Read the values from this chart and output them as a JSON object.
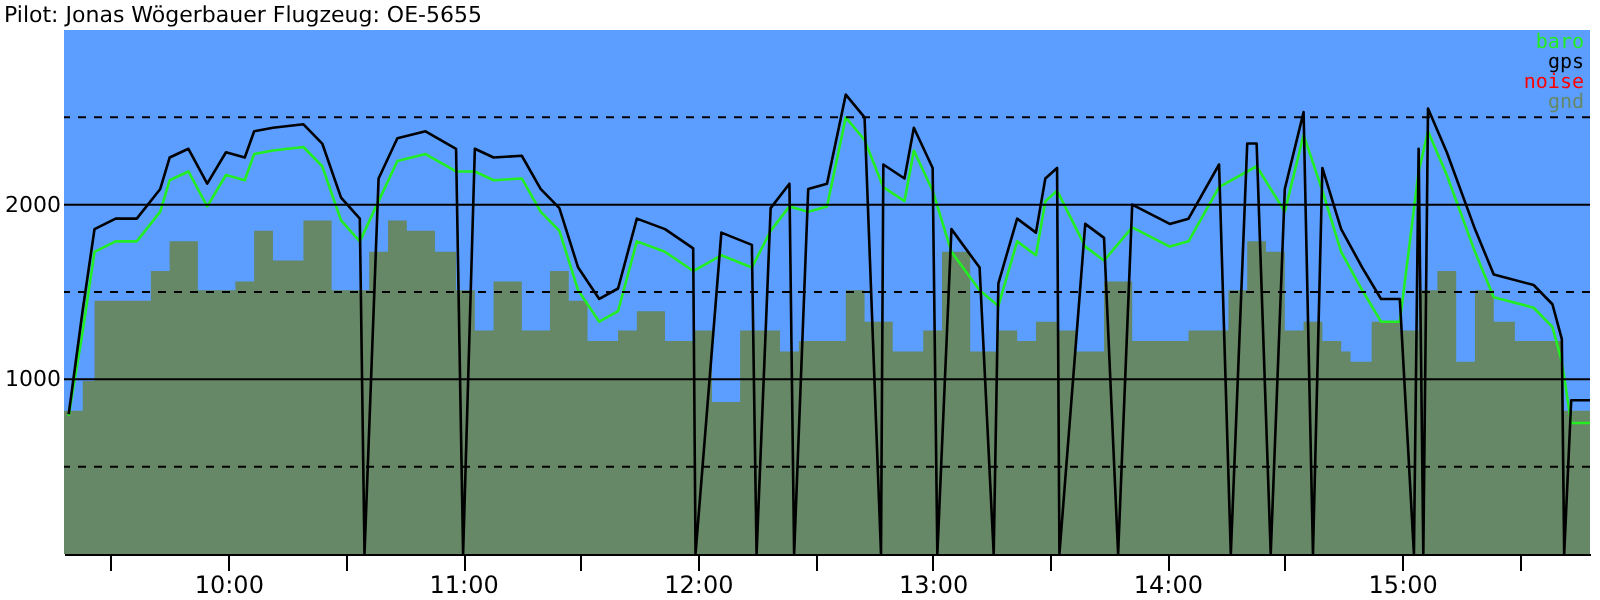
{
  "chart_data": {
    "type": "line",
    "title": "Pilot: Jonas Wögerbauer Flugzeug: OE-5655",
    "xlim": [
      9.3,
      15.8
    ],
    "ylim": [
      0,
      3000
    ],
    "xticks": [
      {
        "value": 9.5,
        "label": null
      },
      {
        "value": 10,
        "label": "10:00"
      },
      {
        "value": 10.5,
        "label": null
      },
      {
        "value": 11,
        "label": "11:00"
      },
      {
        "value": 11.5,
        "label": null
      },
      {
        "value": 12,
        "label": "12:00"
      },
      {
        "value": 12.5,
        "label": null
      },
      {
        "value": 13,
        "label": "13:00"
      },
      {
        "value": 13.5,
        "label": null
      },
      {
        "value": 14,
        "label": "14:00"
      },
      {
        "value": 14.5,
        "label": null
      },
      {
        "value": 15,
        "label": "15:00"
      },
      {
        "value": 15.5,
        "label": null
      }
    ],
    "yticks": [
      {
        "value": 500,
        "label": null
      },
      1000,
      {
        "value": 1500,
        "label": null
      },
      2000,
      {
        "value": 2500,
        "label": null
      }
    ],
    "grid": "y",
    "legend": "top right",
    "series": [
      {
        "name": "gnd",
        "type": "area",
        "color": "#668866",
        "x": [
          9.3,
          9.38,
          9.43,
          9.54,
          9.67,
          9.75,
          9.87,
          10.03,
          10.11,
          10.19,
          10.32,
          10.44,
          10.6,
          10.68,
          10.76,
          10.88,
          10.97,
          11.05,
          11.13,
          11.25,
          11.37,
          11.45,
          11.53,
          11.66,
          11.74,
          11.86,
          11.98,
          12.06,
          12.18,
          12.35,
          12.43,
          12.55,
          12.63,
          12.71,
          12.83,
          12.96,
          13.04,
          13.16,
          13.28,
          13.36,
          13.44,
          13.53,
          13.61,
          13.73,
          13.85,
          13.93,
          14.09,
          14.26,
          14.34,
          14.42,
          14.5,
          14.58,
          14.66,
          14.74,
          14.78,
          14.87,
          14.99,
          15.07,
          15.15,
          15.23,
          15.31,
          15.39,
          15.48,
          15.6,
          15.68,
          15.8
        ],
        "values": [
          820,
          990,
          1450,
          1450,
          1620,
          1790,
          1510,
          1560,
          1850,
          1680,
          1910,
          1510,
          1730,
          1910,
          1850,
          1730,
          1510,
          1280,
          1560,
          1280,
          1620,
          1450,
          1220,
          1280,
          1390,
          1220,
          1280,
          870,
          1280,
          1160,
          1220,
          1220,
          1510,
          1330,
          1160,
          1280,
          1730,
          1160,
          1280,
          1220,
          1330,
          1280,
          1160,
          1560,
          1220,
          1220,
          1280,
          1510,
          1790,
          1730,
          1280,
          1330,
          1220,
          1160,
          1100,
          1330,
          1280,
          1510,
          1620,
          1100,
          1510,
          1330,
          1220,
          1220,
          820,
          470
        ]
      },
      {
        "name": "baro",
        "color": "#22ee22",
        "x": [
          9.32,
          9.38,
          9.43,
          9.52,
          9.61,
          9.71,
          9.75,
          9.83,
          9.91,
          9.99,
          10.07,
          10.11,
          10.19,
          10.32,
          10.4,
          10.48,
          10.56,
          10.64,
          10.72,
          10.84,
          10.97,
          11.05,
          11.13,
          11.25,
          11.33,
          11.41,
          11.49,
          11.58,
          11.66,
          11.74,
          11.86,
          11.98,
          12.1,
          12.23,
          12.31,
          12.39,
          12.47,
          12.55,
          12.63,
          12.71,
          12.79,
          12.88,
          12.92,
          13.0,
          13.08,
          13.2,
          13.28,
          13.36,
          13.44,
          13.48,
          13.53,
          13.65,
          13.73,
          13.85,
          14.01,
          14.09,
          14.22,
          14.38,
          14.5,
          14.58,
          14.66,
          14.74,
          14.83,
          14.91,
          14.99,
          15.07,
          15.11,
          15.19,
          15.31,
          15.39,
          15.56,
          15.64,
          15.68,
          15.72,
          15.8
        ],
        "values": [
          790,
          1280,
          1730,
          1790,
          1790,
          1960,
          2140,
          2190,
          1990,
          2170,
          2140,
          2290,
          2310,
          2330,
          2220,
          1910,
          1790,
          2020,
          2250,
          2290,
          2190,
          2190,
          2140,
          2150,
          1960,
          1850,
          1510,
          1330,
          1390,
          1790,
          1730,
          1620,
          1710,
          1640,
          1850,
          1990,
          1960,
          1990,
          2500,
          2370,
          2100,
          2020,
          2310,
          2080,
          1730,
          1510,
          1420,
          1790,
          1710,
          2020,
          2080,
          1760,
          1680,
          1870,
          1760,
          1790,
          2100,
          2220,
          1960,
          2400,
          2080,
          1730,
          1510,
          1330,
          1330,
          2190,
          2420,
          2170,
          1730,
          1470,
          1410,
          1300,
          1100,
          750,
          750
        ]
      },
      {
        "name": "gps",
        "color": "#000000",
        "x": [
          9.32,
          9.38,
          9.43,
          9.52,
          9.61,
          9.71,
          9.75,
          9.83,
          9.91,
          9.99,
          10.07,
          10.11,
          10.19,
          10.32,
          10.4,
          10.48,
          10.56,
          10.58,
          10.64,
          10.72,
          10.84,
          10.97,
          11.0,
          11.05,
          11.13,
          11.25,
          11.33,
          11.41,
          11.49,
          11.58,
          11.66,
          11.74,
          11.86,
          11.98,
          11.99,
          12.1,
          12.23,
          12.25,
          12.31,
          12.39,
          12.41,
          12.47,
          12.55,
          12.63,
          12.71,
          12.78,
          12.79,
          12.88,
          12.92,
          13.0,
          13.02,
          13.08,
          13.2,
          13.26,
          13.28,
          13.36,
          13.44,
          13.48,
          13.53,
          13.54,
          13.65,
          13.73,
          13.79,
          13.85,
          14.01,
          14.09,
          14.22,
          14.27,
          14.34,
          14.38,
          14.44,
          14.5,
          14.58,
          14.62,
          14.66,
          14.74,
          14.83,
          14.91,
          14.99,
          15.05,
          15.07,
          15.09,
          15.11,
          15.19,
          15.31,
          15.39,
          15.56,
          15.64,
          15.68,
          15.69,
          15.72,
          15.8
        ],
        "values": [
          800,
          1400,
          1860,
          1920,
          1920,
          2090,
          2270,
          2320,
          2120,
          2300,
          2270,
          2420,
          2440,
          2460,
          2350,
          2040,
          1920,
          0,
          2150,
          2380,
          2420,
          2320,
          0,
          2320,
          2270,
          2280,
          2090,
          1980,
          1640,
          1460,
          1520,
          1920,
          1860,
          1750,
          0,
          1840,
          1770,
          0,
          1980,
          2120,
          0,
          2090,
          2120,
          2630,
          2500,
          0,
          2230,
          2150,
          2440,
          2210,
          0,
          1860,
          1640,
          0,
          1550,
          1920,
          1840,
          2150,
          2210,
          0,
          1890,
          1810,
          0,
          2000,
          1890,
          1920,
          2230,
          0,
          2350,
          2350,
          0,
          2090,
          2530,
          0,
          2210,
          1860,
          1640,
          1460,
          1460,
          0,
          2320,
          0,
          2550,
          2300,
          1860,
          1600,
          1540,
          1430,
          1230,
          0,
          880,
          880
        ]
      },
      {
        "name": "noise",
        "color": "#ff0000"
      }
    ]
  }
}
